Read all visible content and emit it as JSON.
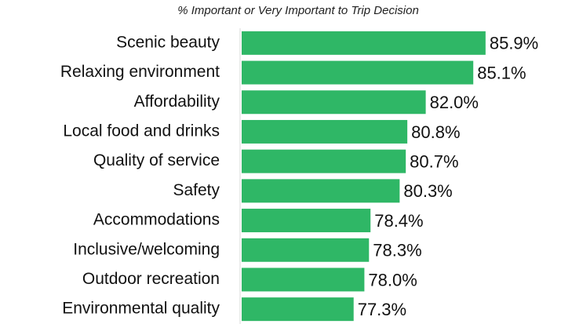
{
  "chart_data": {
    "type": "barh",
    "title": "% Important or Very Important to Trip Decision",
    "categories": [
      "Scenic beauty",
      "Relaxing environment",
      "Affordability",
      "Local food and drinks",
      "Quality of service",
      "Safety",
      "Accommodations",
      "Inclusive/welcoming",
      "Outdoor recreation",
      "Environmental quality"
    ],
    "values": [
      85.9,
      85.1,
      82.0,
      80.8,
      80.7,
      80.3,
      78.4,
      78.3,
      78.0,
      77.3
    ],
    "value_labels": [
      "85.9%",
      "85.1%",
      "82.0%",
      "80.8%",
      "80.7%",
      "80.3%",
      "78.4%",
      "78.3%",
      "78.0%",
      "77.3%"
    ],
    "color": "#2fb766",
    "xlim": [
      70,
      90
    ]
  }
}
